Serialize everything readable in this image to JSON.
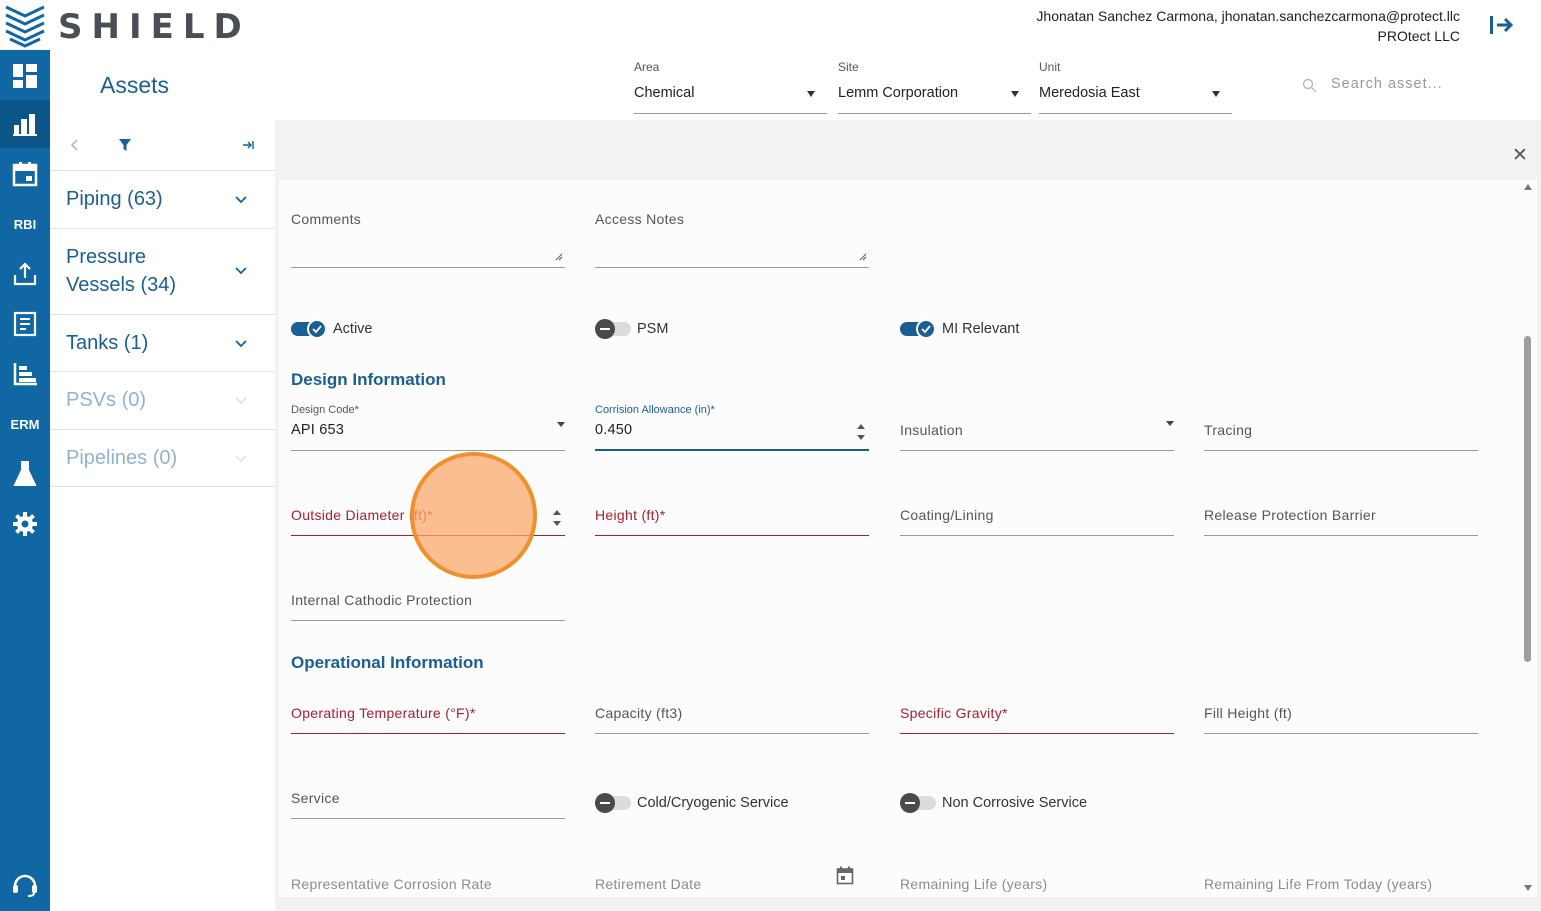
{
  "app": {
    "logo_text": "SHIELD",
    "user_line1": "Jhonatan Sanchez Carmona, jhonatan.sanchezcarmona@protect.llc",
    "user_line2": "PROtect LLC"
  },
  "sidenav": {
    "items": [
      {
        "icon": "dashboard-icon"
      },
      {
        "icon": "assets-icon",
        "active": true
      },
      {
        "icon": "calendar-icon"
      },
      {
        "label": "RBI"
      },
      {
        "icon": "upload-icon"
      },
      {
        "icon": "report-icon"
      },
      {
        "icon": "chart-icon"
      },
      {
        "label": "ERM"
      },
      {
        "icon": "flask-icon"
      },
      {
        "icon": "gear-icon"
      },
      {
        "icon": "support-icon"
      }
    ]
  },
  "header": {
    "title": "Assets",
    "area": {
      "label": "Area",
      "value": "Chemical"
    },
    "site": {
      "label": "Site",
      "value": "Lemm Corporation"
    },
    "unit": {
      "label": "Unit",
      "value": "Meredosia East"
    },
    "search_placeholder": "Search asset..."
  },
  "asset_groups": [
    {
      "label": "Piping (63)",
      "enabled": true
    },
    {
      "label": "Pressure Vessels (34)",
      "line1": "Pressure",
      "line2": "Vessels (34)",
      "enabled": true
    },
    {
      "label": "Tanks (1)",
      "enabled": true
    },
    {
      "label": "PSVs (0)",
      "enabled": false
    },
    {
      "label": "Pipelines (0)",
      "enabled": false
    }
  ],
  "form": {
    "comments_label": "Comments",
    "access_notes_label": "Access Notes",
    "toggles": {
      "active": {
        "label": "Active",
        "on": true
      },
      "psm": {
        "label": "PSM",
        "on": false
      },
      "mi_relevant": {
        "label": "MI Relevant",
        "on": true
      }
    },
    "design_section": "Design Information",
    "design_code": {
      "label": "Design Code*",
      "value": "API 653"
    },
    "corrosion_allowance": {
      "label": "Corrision Allowance (in)*",
      "value": "0.450"
    },
    "insulation_label": "Insulation",
    "tracing_label": "Tracing",
    "outside_diameter_label": "Outside Diameter (ft)*",
    "height_label": "Height (ft)*",
    "coating_label": "Coating/Lining",
    "release_barrier_label": "Release Protection Barrier",
    "cathodic_label": "Internal Cathodic Protection",
    "operational_section": "Operational Information",
    "op_temp_label": "Operating Temperature (°F)*",
    "capacity_label": "Capacity (ft3)",
    "specific_gravity_label": "Specific Gravity*",
    "fill_height_label": "Fill Height (ft)",
    "service_label": "Service",
    "cold_service": {
      "label": "Cold/Cryogenic Service",
      "on": false
    },
    "non_corrosive": {
      "label": "Non Corrosive Service",
      "on": false
    },
    "rep_corrosion_label": "Representative Corrosion Rate",
    "retirement_label": "Retirement Date",
    "remaining_life_label": "Remaining Life (years)",
    "remaining_life_today_label": "Remaining Life From Today (years)"
  }
}
